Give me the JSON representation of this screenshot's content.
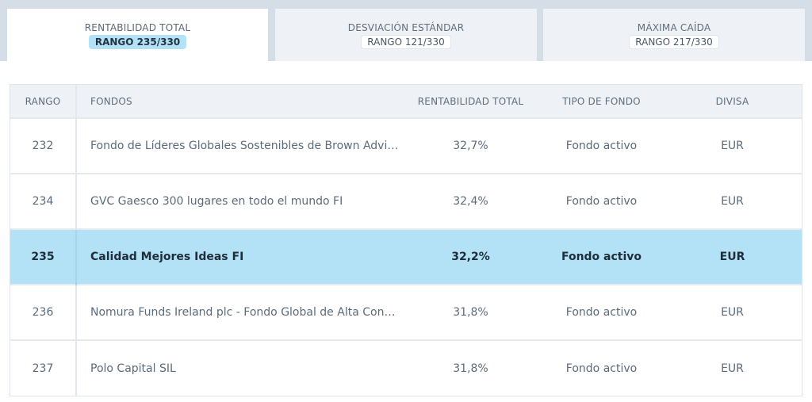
{
  "tabs": [
    {
      "title": "RENTABILIDAD TOTAL",
      "badge": "RANGO 235/330"
    },
    {
      "title": "DESVIACIÓN ESTÁNDAR",
      "badge": "RANGO 121/330"
    },
    {
      "title": "MÁXIMA CAÍDA",
      "badge": "RANGO 217/330"
    }
  ],
  "table": {
    "headers": {
      "rank": "RANGO",
      "fund": "FONDOS",
      "return": "RENTABILIDAD TOTAL",
      "type": "TIPO DE FONDO",
      "currency": "DIVISA"
    },
    "rows": [
      {
        "rank": "232",
        "fund": "Fondo de Líderes Globales Sostenibles de Brown Advisory",
        "return": "32,7%",
        "type": "Fondo activo",
        "currency": "EUR"
      },
      {
        "rank": "234",
        "fund": "GVC Gaesco 300 lugares en todo el mundo FI",
        "return": "32,4%",
        "type": "Fondo activo",
        "currency": "EUR"
      },
      {
        "rank": "235",
        "fund": "Calidad Mejores Ideas FI",
        "return": "32,2%",
        "type": "Fondo activo",
        "currency": "EUR"
      },
      {
        "rank": "236",
        "fund": "Nomura Funds Ireland plc - Fondo Global de Alta Convic...",
        "return": "31,8%",
        "type": "Fondo activo",
        "currency": "EUR"
      },
      {
        "rank": "237",
        "fund": "Polo Capital SIL",
        "return": "31,8%",
        "type": "Fondo activo",
        "currency": "EUR"
      }
    ]
  },
  "colors": {
    "highlight_row": "#b3e2f6",
    "tab_bar": "#d5dde7",
    "header_bg": "#eef1f5"
  }
}
